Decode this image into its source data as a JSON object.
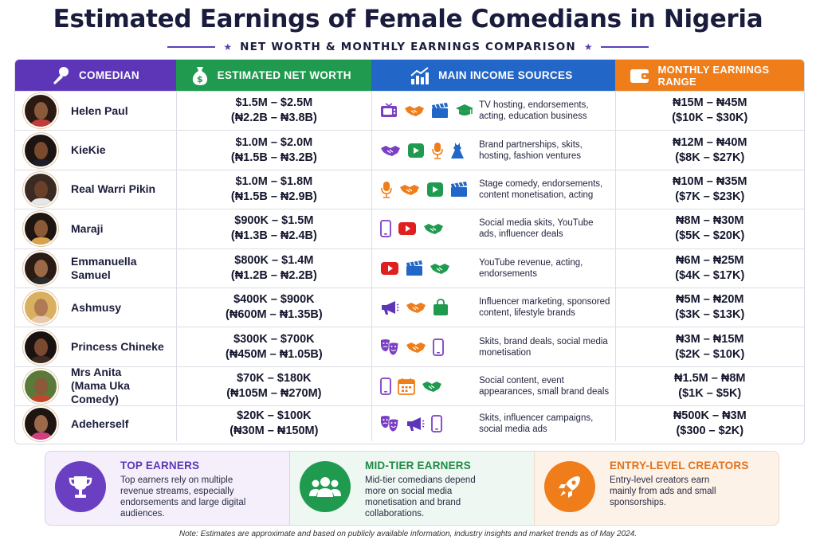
{
  "title": "Estimated Earnings of Female Comedians in Nigeria",
  "subtitle": "NET WORTH & MONTHLY EARNINGS COMPARISON",
  "columns": {
    "comedian": "COMEDIAN",
    "net_worth": "ESTIMATED NET WORTH",
    "sources": "MAIN INCOME SOURCES",
    "monthly": "MONTHLY EARNINGS RANGE"
  },
  "colors": {
    "comedian_header": "#5d36b8",
    "net_worth_header": "#1f9a4e",
    "sources_header": "#2266c7",
    "monthly_header": "#ef7d1a"
  },
  "rows": [
    {
      "name": "Helen Paul",
      "nw_usd": "$1.5M – $2.5M",
      "nw_ngn": "(₦2.2B – ₦3.8B)",
      "icons": [
        "tv-icon",
        "handshake-icon",
        "clapperboard-icon",
        "graduation-cap-icon"
      ],
      "sources": "TV hosting, endorsements, acting, education business",
      "monthly_ngn": "₦15M – ₦45M",
      "monthly_usd": "($10K – $30K)"
    },
    {
      "name": "KieKie",
      "nw_usd": "$1.0M – $2.0M",
      "nw_ngn": "(₦1.5B – ₦3.2B)",
      "icons": [
        "handshake-icon",
        "play-icon",
        "microphone-icon",
        "dress-icon"
      ],
      "sources": "Brand partnerships, skits, hosting, fashion ventures",
      "monthly_ngn": "₦12M – ₦40M",
      "monthly_usd": "($8K – $27K)"
    },
    {
      "name": "Real Warri Pikin",
      "nw_usd": "$1.0M – $1.8M",
      "nw_ngn": "(₦1.5B – ₦2.9B)",
      "icons": [
        "microphone-icon",
        "handshake-icon",
        "play-icon",
        "clapperboard-icon"
      ],
      "sources": "Stage comedy, endorsements, content monetisation, acting",
      "monthly_ngn": "₦10M – ₦35M",
      "monthly_usd": "($7K – $23K)"
    },
    {
      "name": "Maraji",
      "nw_usd": "$900K – $1.5M",
      "nw_ngn": "(₦1.3B – ₦2.4B)",
      "icons": [
        "phone-icon",
        "youtube-icon",
        "handshake-icon"
      ],
      "sources": "Social media skits, YouTube ads, influencer deals",
      "monthly_ngn": "₦8M – ₦30M",
      "monthly_usd": "($5K – $20K)"
    },
    {
      "name": "Emmanuella Samuel",
      "nw_usd": "$800K – $1.4M",
      "nw_ngn": "(₦1.2B – ₦2.2B)",
      "icons": [
        "youtube-icon",
        "clapperboard-icon",
        "handshake-icon"
      ],
      "sources": "YouTube revenue, acting, endorsements",
      "monthly_ngn": "₦6M – ₦25M",
      "monthly_usd": "($4K – $17K)"
    },
    {
      "name": "Ashmusy",
      "nw_usd": "$400K – $900K",
      "nw_ngn": "(₦600M – ₦1.35B)",
      "icons": [
        "megaphone-icon",
        "handshake-icon",
        "shopping-bag-icon"
      ],
      "sources": "Influencer marketing, sponsored content, lifestyle brands",
      "monthly_ngn": "₦5M – ₦20M",
      "monthly_usd": "($3K – $13K)"
    },
    {
      "name": "Princess Chineke",
      "nw_usd": "$300K – $700K",
      "nw_ngn": "(₦450M – ₦1.05B)",
      "icons": [
        "theater-masks-icon",
        "handshake-icon",
        "phone-icon"
      ],
      "sources": "Skits, brand deals, social media monetisation",
      "monthly_ngn": "₦3M – ₦15M",
      "monthly_usd": "($2K – $10K)"
    },
    {
      "name": "Mrs Anita\n(Mama Uka Comedy)",
      "nw_usd": "$70K – $180K",
      "nw_ngn": "(₦105M – ₦270M)",
      "icons": [
        "phone-icon",
        "calendar-icon",
        "handshake-icon"
      ],
      "sources": "Social content, event appearances, small brand deals",
      "monthly_ngn": "₦1.5M – ₦8M",
      "monthly_usd": "($1K – $5K)"
    },
    {
      "name": "Adeherself",
      "nw_usd": "$20K – $100K",
      "nw_ngn": "(₦30M – ₦150M)",
      "icons": [
        "theater-masks-icon",
        "megaphone-icon",
        "phone-icon"
      ],
      "sources": "Skits, influencer campaigns, social media ads",
      "monthly_ngn": "₦500K – ₦3M",
      "monthly_usd": "($300 – $2K)"
    }
  ],
  "cards": [
    {
      "title": "TOP EARNERS",
      "text": "Top earners rely on multiple revenue streams, especially endorsements and large digital audiences.",
      "icon": "trophy-icon",
      "color": "#6a3fc2"
    },
    {
      "title": "MID-TIER EARNERS",
      "text": "Mid-tier comedians depend more on social media monetisation and brand collaborations.",
      "icon": "group-icon",
      "color": "#1f9a4e"
    },
    {
      "title": "ENTRY-LEVEL CREATORS",
      "text": "Entry-level creators earn mainly from ads and small sponsorships.",
      "icon": "rocket-icon",
      "color": "#ef7d1a"
    }
  ],
  "note": "Note: Estimates are approximate and based on publicly available information, industry insights and market trends as of May 2024."
}
